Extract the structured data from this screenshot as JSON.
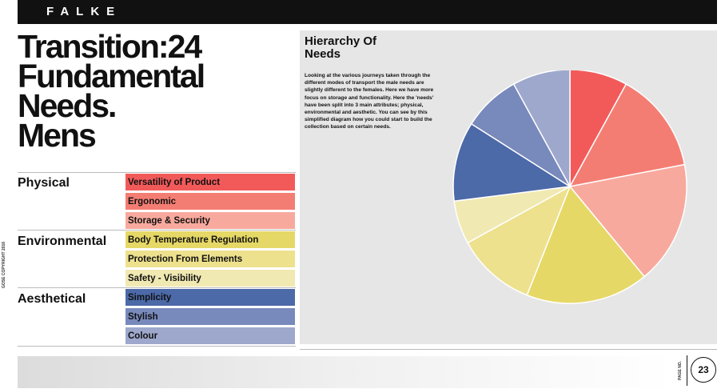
{
  "header": {
    "brand": "FALKE"
  },
  "title": {
    "line1": "Transition:24",
    "line2": "Fundamental",
    "line3": "Needs.",
    "line4": "Mens"
  },
  "categories": [
    {
      "name": "Physical",
      "needs": [
        {
          "label": "Versatility of Product",
          "color": "#f25a5a"
        },
        {
          "label": "Ergonomic",
          "color": "#f47d73"
        },
        {
          "label": "Storage & Security",
          "color": "#f8a99d"
        }
      ]
    },
    {
      "name": "Environmental",
      "needs": [
        {
          "label": "Body Temperature Regulation",
          "color": "#e6d866"
        },
        {
          "label": "Protection From Elements",
          "color": "#ede18e"
        },
        {
          "label": "Safety - Visibility",
          "color": "#f1e9b2"
        }
      ]
    },
    {
      "name": "Aesthetical",
      "needs": [
        {
          "label": "Simplicity",
          "color": "#4c69a8"
        },
        {
          "label": "Stylish",
          "color": "#7889bc"
        },
        {
          "label": "Colour",
          "color": "#9ea8cd"
        }
      ]
    }
  ],
  "side_copyright": "GOSE COPYRIGHT 2016",
  "panel": {
    "title_line1": "Hierarchy Of",
    "title_line2": "Needs",
    "body": "Looking at the various journeys taken through the different modes of transport the male needs are slightly different to the females. Here we have more focus on storage and functionality. Here the 'needs' have been split into 3 main attributes; physical, environmental and aesthetic. You can see by this simplified diagram how you could start to build the collection based on certain needs."
  },
  "chart_data": {
    "type": "pie",
    "start_angle_deg": 0,
    "slices": [
      {
        "value": 8,
        "color": "#f25a5a"
      },
      {
        "value": 14,
        "color": "#f47d73"
      },
      {
        "value": 17,
        "color": "#f8a99d"
      },
      {
        "value": 17,
        "color": "#e6d866"
      },
      {
        "value": 11,
        "color": "#ede18e"
      },
      {
        "value": 6,
        "color": "#f1e9b2"
      },
      {
        "value": 11,
        "color": "#4c69a8"
      },
      {
        "value": 8,
        "color": "#7889bc"
      },
      {
        "value": 8,
        "color": "#9ea8cd"
      }
    ]
  },
  "footer": {
    "label": "PAGE NO.",
    "page_number": "23"
  }
}
